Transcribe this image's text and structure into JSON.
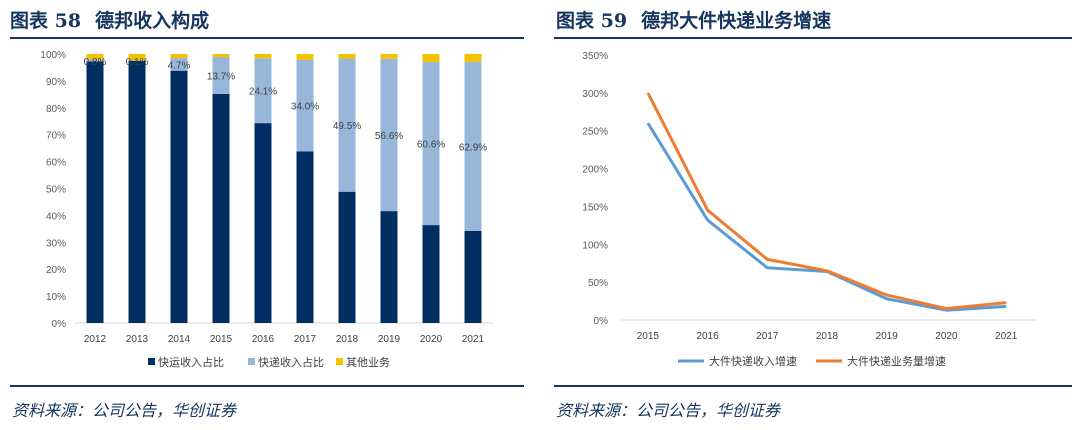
{
  "figures": [
    {
      "title_num": "图表 58",
      "title_text": "德邦收入构成",
      "source": "资料来源：公司公告，华创证券"
    },
    {
      "title_num": "图表 59",
      "title_text": "德邦大件快递业务增速",
      "source": "资料来源：公司公告，华创证券"
    }
  ],
  "chart_data": [
    {
      "type": "bar",
      "stacked": true,
      "title": "德邦收入构成",
      "categories": [
        "2012",
        "2013",
        "2014",
        "2015",
        "2016",
        "2017",
        "2018",
        "2019",
        "2020",
        "2021"
      ],
      "series": [
        {
          "name": "快运收入占比",
          "color": "#002e63",
          "values": [
            97.2,
            97.5,
            93.8,
            85.2,
            74.3,
            63.8,
            48.8,
            41.6,
            36.4,
            34.2
          ]
        },
        {
          "name": "快递收入占比",
          "color": "#97b6d9",
          "values": [
            0.8,
            0.1,
            4.7,
            13.7,
            24.1,
            34.0,
            49.5,
            56.6,
            60.6,
            62.9
          ]
        },
        {
          "name": "其他业务",
          "color": "#f5c200",
          "values": [
            2.0,
            2.4,
            1.5,
            1.1,
            1.6,
            2.2,
            1.7,
            1.8,
            3.0,
            2.9
          ]
        }
      ],
      "data_labels": [
        "0.8%",
        "0.1%",
        "4.7%",
        "13.7%",
        "24.1%",
        "34.0%",
        "49.5%",
        "56.6%",
        "60.6%",
        "62.9%"
      ],
      "yticks": [
        "0%",
        "10%",
        "20%",
        "30%",
        "40%",
        "50%",
        "60%",
        "70%",
        "80%",
        "90%",
        "100%"
      ],
      "ylim": [
        0,
        100
      ],
      "legend": "bottom"
    },
    {
      "type": "line",
      "title": "德邦大件快递业务增速",
      "x": [
        "2015",
        "2016",
        "2017",
        "2018",
        "2019",
        "2020",
        "2021"
      ],
      "series": [
        {
          "name": "大件快递收入增速",
          "color": "#5b9bd5",
          "values": [
            260,
            132,
            69,
            64,
            28,
            13,
            18
          ]
        },
        {
          "name": "大件快递业务量增速",
          "color": "#ed7d31",
          "values": [
            300,
            145,
            80,
            65,
            33,
            15,
            23
          ]
        }
      ],
      "yticks": [
        "0%",
        "50%",
        "100%",
        "150%",
        "200%",
        "250%",
        "300%",
        "350%"
      ],
      "ylim": [
        0,
        350
      ],
      "legend": "bottom"
    }
  ]
}
